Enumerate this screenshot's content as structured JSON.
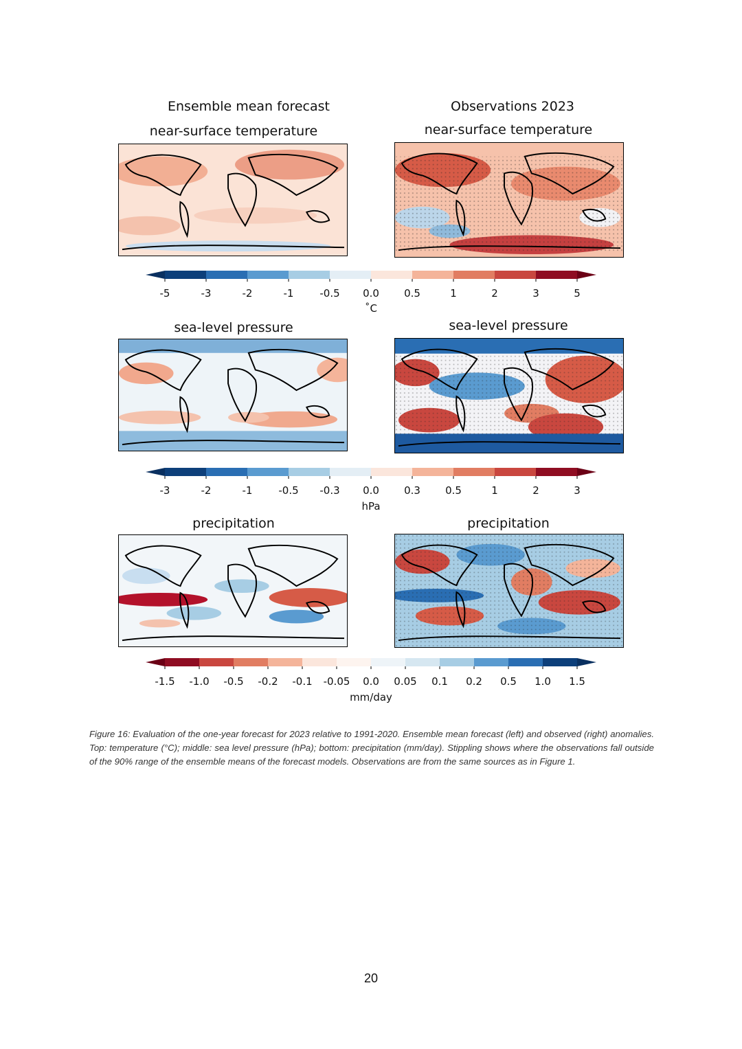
{
  "figure": {
    "col_left_heading": "Ensemble mean forecast",
    "col_right_heading": "Observations 2023",
    "rows": [
      {
        "key": "temperature",
        "left_title": "near-surface temperature",
        "right_title": "near-surface temperature",
        "colorbar": {
          "ticks": [
            "-5",
            "-3",
            "-2",
            "-1",
            "-0.5",
            "0.0",
            "0.5",
            "1",
            "2",
            "3",
            "5"
          ],
          "unit": "˚C",
          "colors": [
            "#0d3f7a",
            "#2a6eb3",
            "#5a9bd0",
            "#a7cde4",
            "#e4eef5",
            "#fbe6dc",
            "#f4b49a",
            "#e17d62",
            "#c9473f",
            "#8f0d22"
          ],
          "extend_low": "#0a3060",
          "extend_high": "#6b0015"
        }
      },
      {
        "key": "pressure",
        "left_title": "sea-level pressure",
        "right_title": "sea-level pressure",
        "colorbar": {
          "ticks": [
            "-3",
            "-2",
            "-1",
            "-0.5",
            "-0.3",
            "0.0",
            "0.3",
            "0.5",
            "1",
            "2",
            "3"
          ],
          "unit": "hPa",
          "colors": [
            "#0d3f7a",
            "#2a6eb3",
            "#5a9bd0",
            "#a7cde4",
            "#e4eef5",
            "#fbe6dc",
            "#f4b49a",
            "#e17d62",
            "#c9473f",
            "#8f0d22"
          ],
          "extend_low": "#0a3060",
          "extend_high": "#6b0015"
        }
      },
      {
        "key": "precipitation",
        "left_title": "precipitation",
        "right_title": "precipitation",
        "colorbar": {
          "ticks": [
            "-1.5",
            "-1.0",
            "-0.5",
            "-0.2",
            "-0.1",
            "-0.05",
            "0.0",
            "0.05",
            "0.1",
            "0.2",
            "0.5",
            "1.0",
            "1.5"
          ],
          "unit": "mm/day",
          "colors": [
            "#8f0d22",
            "#c9473f",
            "#e17d62",
            "#f4b49a",
            "#fbe6dc",
            "#fdf4ef",
            "#eef4f8",
            "#d6e7f1",
            "#a7cde4",
            "#5a9bd0",
            "#2a6eb3",
            "#0d3f7a"
          ],
          "extend_low": "#6b0015",
          "extend_high": "#0a3060"
        }
      }
    ],
    "caption": "Figure 16: Evaluation of the one-year forecast for 2023 relative to 1991-2020. Ensemble mean forecast (left) and observed (right) anomalies. Top: temperature (°C); middle: sea level pressure (hPa); bottom: precipitation (mm/day). Stippling shows where the observations fall outside of the 90% range of the ensemble means of the forecast models. Observations are from the same sources as in Figure 1."
  },
  "page_number": "20"
}
